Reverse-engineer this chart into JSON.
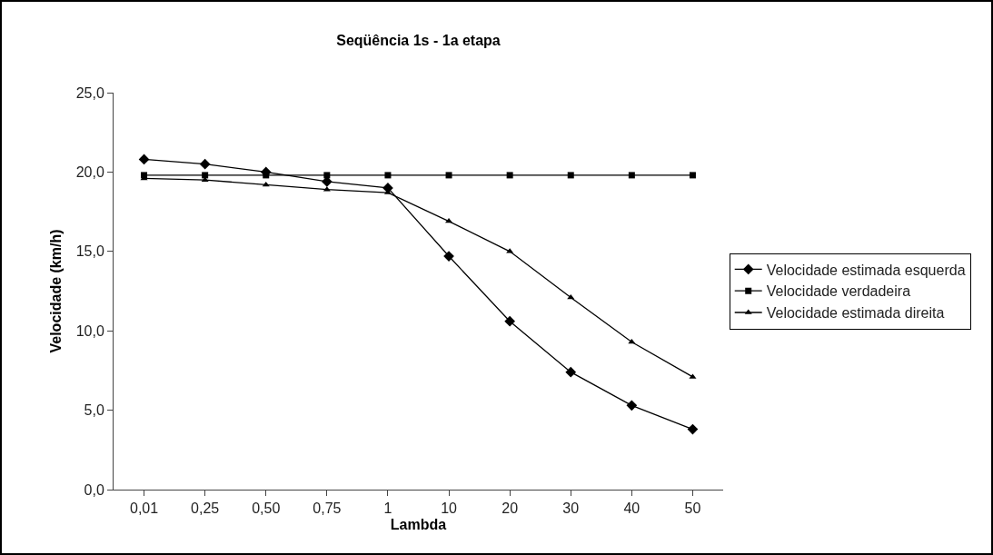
{
  "chart_data": {
    "type": "line",
    "title": "Seqüência 1s - 1a etapa",
    "xlabel": "Lambda",
    "ylabel": "Velocidade (km/h)",
    "categories": [
      "0,01",
      "0,25",
      "0,50",
      "0,75",
      "1",
      "10",
      "20",
      "30",
      "40",
      "50"
    ],
    "series": [
      {
        "name": "Velocidade estimada esquerda",
        "color": "#000000",
        "marker": "diamond",
        "values": [
          20.8,
          20.5,
          20.0,
          19.4,
          19.0,
          14.7,
          10.6,
          7.4,
          5.3,
          3.8
        ]
      },
      {
        "name": "Velocidade verdadeira",
        "color": "#000000",
        "marker": "square",
        "values": [
          19.8,
          19.8,
          19.8,
          19.8,
          19.8,
          19.8,
          19.8,
          19.8,
          19.8,
          19.8
        ]
      },
      {
        "name": "Velocidade estimada direita",
        "color": "#000000",
        "marker": "triangle",
        "values": [
          19.6,
          19.5,
          19.2,
          18.9,
          18.7,
          16.9,
          15.0,
          12.1,
          9.3,
          7.1
        ]
      }
    ],
    "ylim": [
      0,
      25
    ],
    "yticks": [
      {
        "value": 0,
        "label": "0,0"
      },
      {
        "value": 5,
        "label": "5,0"
      },
      {
        "value": 10,
        "label": "10,0"
      },
      {
        "value": 15,
        "label": "15,0"
      },
      {
        "value": 20,
        "label": "20,0"
      },
      {
        "value": 25,
        "label": "25,0"
      }
    ],
    "grid": false,
    "legend": "right",
    "line_style": "solid"
  }
}
